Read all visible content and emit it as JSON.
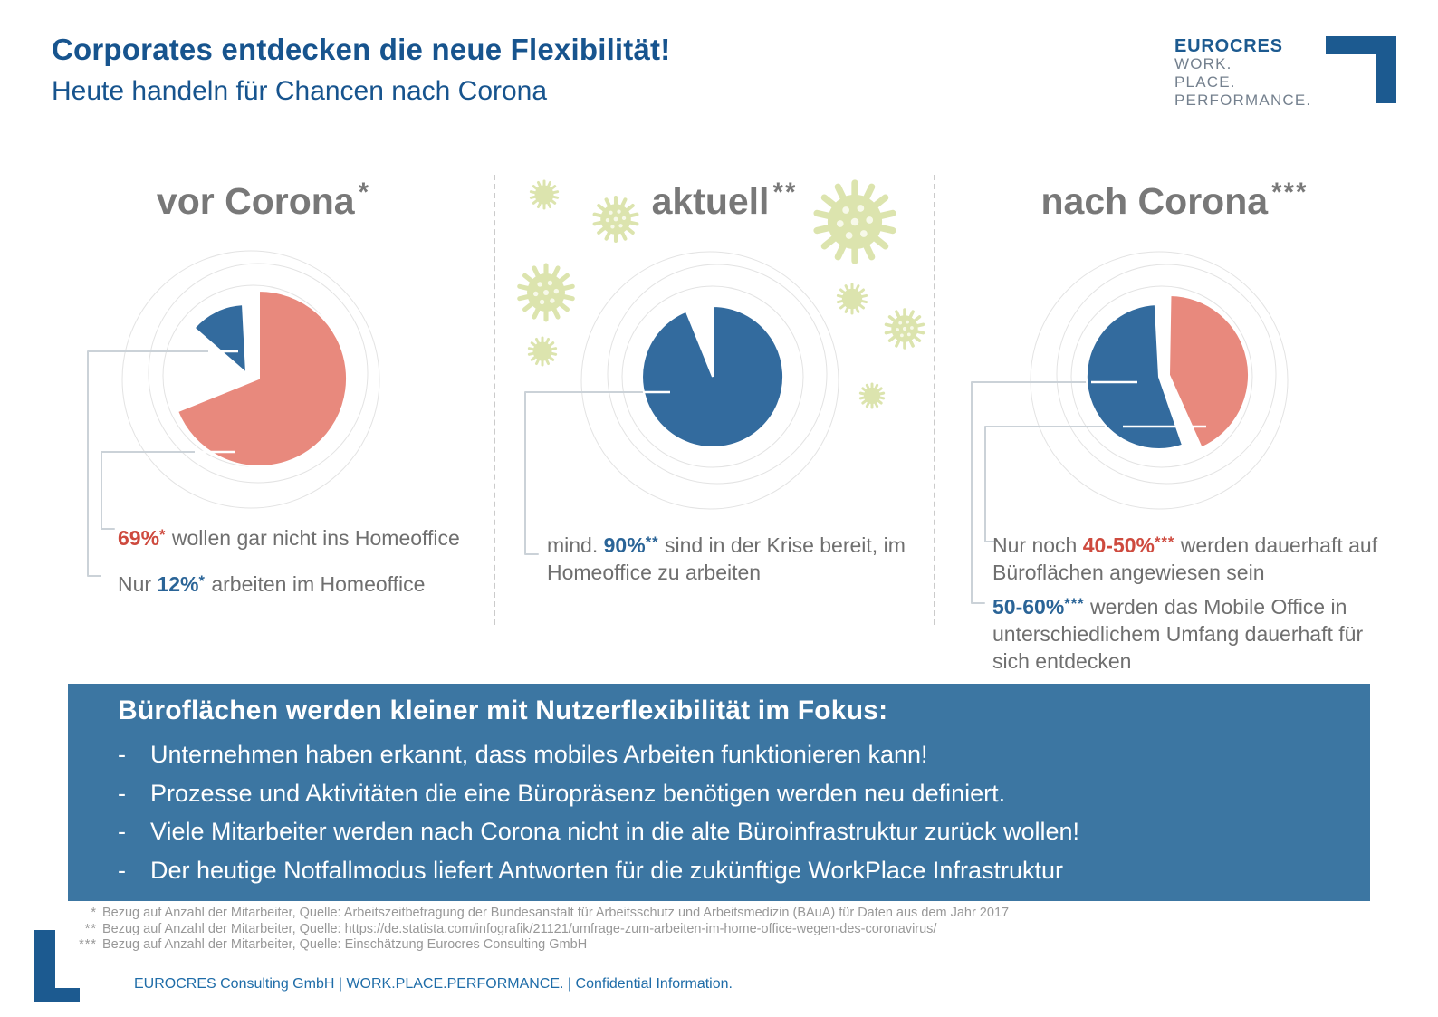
{
  "page": {
    "title": "Corporates entdecken die neue Flexibilität!",
    "subtitle": "Heute handeln für Chancen nach Corona"
  },
  "logo": {
    "name": "EUROCRES",
    "tagline": [
      "WORK.",
      "PLACE.",
      "PERFORMANCE."
    ]
  },
  "columns": [
    {
      "heading": "vor Corona",
      "marker": "*",
      "labels": [
        {
          "prefix": "",
          "value": "69%",
          "marker": "*",
          "text": " wollen gar nicht ins Homeoffice",
          "value_color": "red"
        },
        {
          "prefix": "Nur ",
          "value": "12%",
          "marker": "*",
          "text": " arbeiten im Homeoffice",
          "value_color": "blue"
        }
      ]
    },
    {
      "heading": "aktuell",
      "marker": "**",
      "labels": [
        {
          "prefix": "mind. ",
          "value": "90%",
          "marker": "**",
          "text": " sind in der Krise bereit, im Homeoffice zu arbeiten",
          "value_color": "blue"
        }
      ]
    },
    {
      "heading": "nach Corona",
      "marker": "***",
      "labels": [
        {
          "prefix": "Nur noch ",
          "value": "40-50%",
          "marker": "***",
          "text": " werden dauerhaft auf Büroflächen angewiesen sein",
          "value_color": "red"
        },
        {
          "prefix": "",
          "value": "50-60%",
          "marker": "***",
          "text": " werden das Mobile Office in unterschiedlichem Umfang dauerhaft für sich entdecken",
          "value_color": "blue"
        }
      ]
    }
  ],
  "box": {
    "heading": "Büroflächen werden kleiner mit Nutzerflexibilität im Fokus:",
    "bullet_char": "-",
    "bullets": [
      "Unternehmen haben erkannt, dass mobiles Arbeiten funktionieren kann!",
      "Prozesse und Aktivitäten die eine Büropräsenz benötigen werden neu definiert.",
      "Viele Mitarbeiter werden nach Corona nicht in die alte Büroinfrastruktur zurück wollen!",
      "Der heutige Notfallmodus liefert Antworten für die zukünftige WorkPlace Infrastruktur"
    ]
  },
  "footnotes": [
    {
      "marker": "*",
      "text": "Bezug auf Anzahl der Mitarbeiter, Quelle: Arbeitszeitbefragung der Bundesanstalt für Arbeitsschutz und Arbeitsmedizin (BAuA) für Daten aus dem Jahr 2017"
    },
    {
      "marker": "**",
      "text": "Bezug auf Anzahl der Mitarbeiter, Quelle: https://de.statista.com/infografik/21121/umfrage-zum-arbeiten-im-home-office-wegen-des-coronavirus/"
    },
    {
      "marker": "***",
      "text": "Bezug auf Anzahl der Mitarbeiter, Quelle: Einschätzung Eurocres Consulting GmbH"
    }
  ],
  "footer": {
    "text": "EUROCRES Consulting GmbH | WORK.PLACE.PERFORMANCE. | Confidential Information."
  },
  "colors": {
    "brand_blue": "#1C5A90",
    "pie_blue": "#336B9E",
    "pie_salmon": "#E8897D",
    "box_blue": "#3C76A2",
    "value_red": "#CE4A3E",
    "value_blue": "#2A6497",
    "heading_gray": "#787878",
    "virus_green": "#DCE4AE"
  },
  "chart_data": [
    {
      "type": "pie",
      "title": "vor Corona*",
      "slices": [
        {
          "name": "wollen gar nicht ins Homeoffice",
          "pct_label": "69%",
          "value": 69,
          "color": "#E8897D",
          "start_deg": 0,
          "end_deg": 248,
          "radius": 97,
          "offset": [
            6,
            3
          ]
        },
        {
          "name": "arbeiten im Homeoffice",
          "pct_label": "12%",
          "value": 12,
          "color": "#336B9E",
          "start_deg": 311,
          "end_deg": 357,
          "radius": 76,
          "offset": [
            -8,
            -3
          ]
        }
      ]
    },
    {
      "type": "pie",
      "title": "aktuell**",
      "slices": [
        {
          "name": "sind in der Krise bereit, im Homeoffice zu arbeiten",
          "pct_label": "mind. 90%",
          "value": 90,
          "color": "#336B9E",
          "start_deg": 0,
          "end_deg": 338,
          "radius": 78,
          "offset": [
            0,
            0
          ]
        }
      ]
    },
    {
      "type": "pie",
      "title": "nach Corona***",
      "slices": [
        {
          "name": "werden das Mobile Office in unterschiedlichem Umfang dauerhaft für sich entdecken",
          "pct_label": "50-60%",
          "value": 55,
          "color": "#336B9E",
          "start_deg": 161,
          "end_deg": 357,
          "radius": 80,
          "offset": [
            -3,
            0
          ]
        },
        {
          "name": "werden dauerhaft auf Büroflächen angewiesen sein",
          "pct_label": "40-50%",
          "value": 45,
          "color": "#E8897D",
          "start_deg": 1,
          "end_deg": 156,
          "radius": 88,
          "offset": [
            8,
            -2
          ]
        }
      ]
    }
  ]
}
